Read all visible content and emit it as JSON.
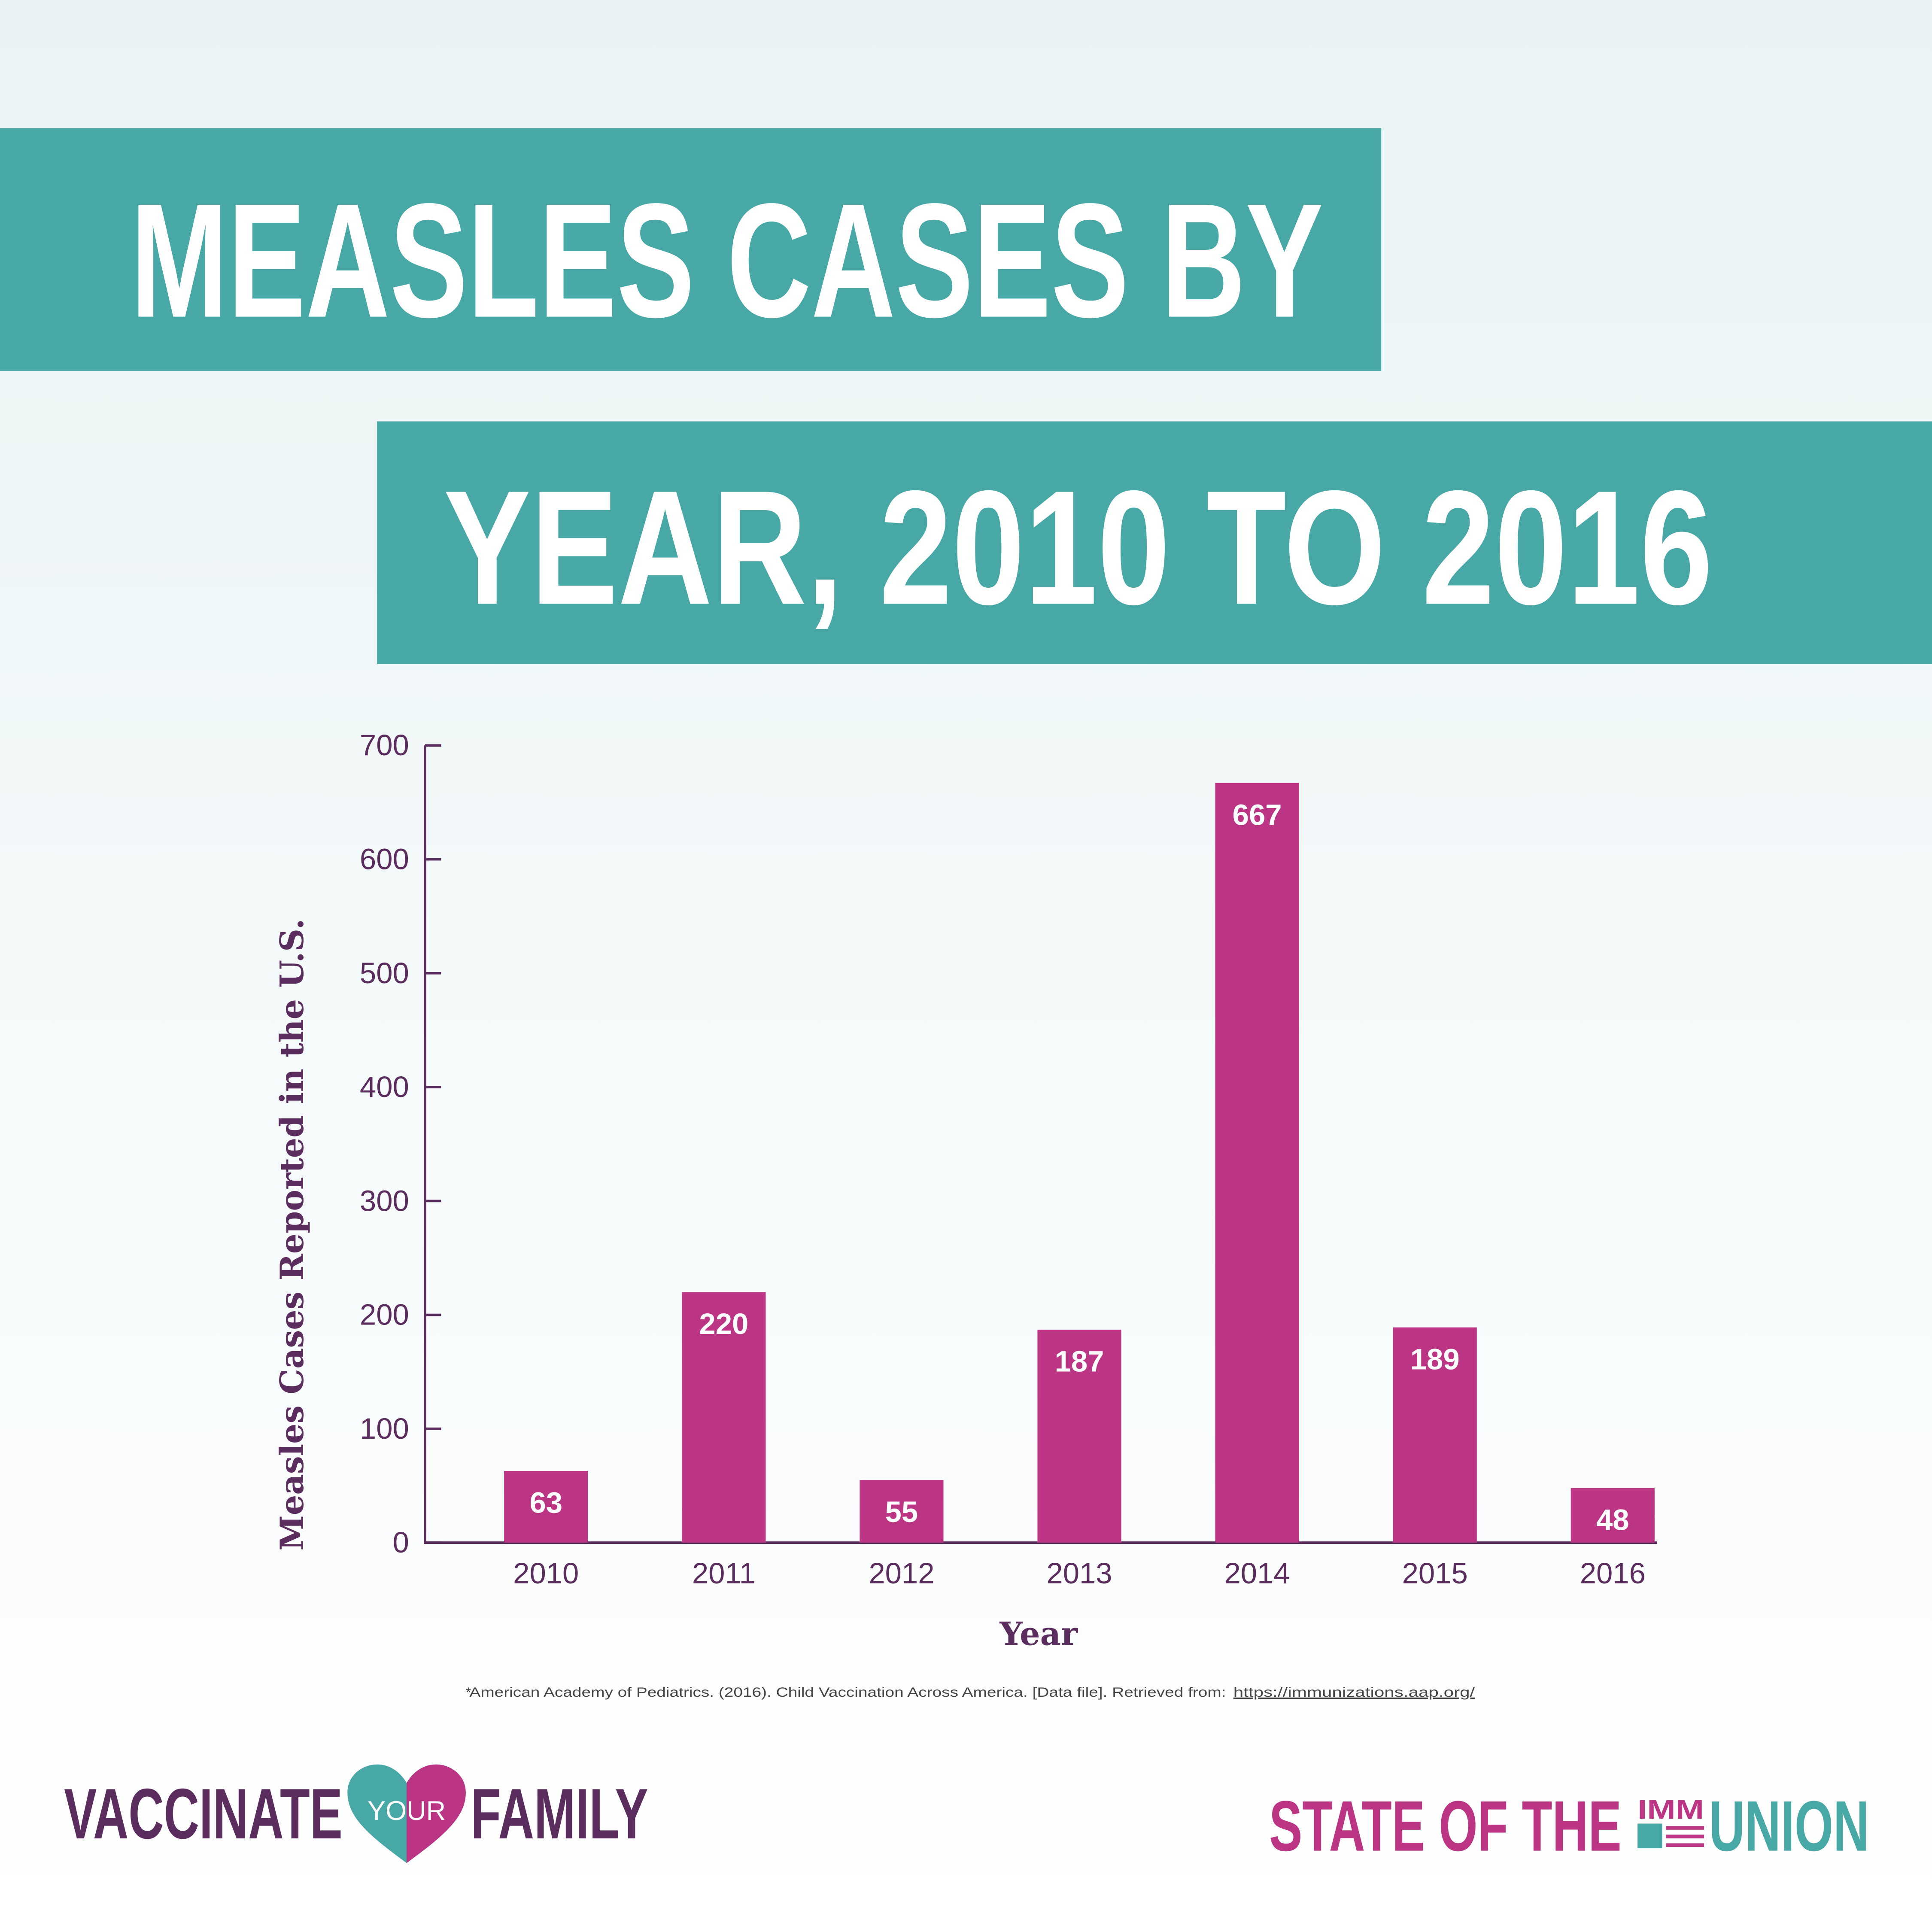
{
  "chart_data": {
    "type": "bar",
    "title": [
      "MEASLES CASES BY",
      "YEAR, 2010 TO 2016"
    ],
    "x_label": "Year",
    "y_label": "Measles Cases Reported in the U.S.",
    "categories": [
      "2010",
      "2011",
      "2012",
      "2013",
      "2014",
      "2015",
      "2016"
    ],
    "values": [
      63,
      220,
      55,
      187,
      667,
      189,
      48
    ],
    "color": "#bc3584",
    "ylim": [
      0,
      700
    ],
    "yticks": [
      0,
      100,
      200,
      300,
      400,
      500,
      600,
      700
    ],
    "grid": false
  },
  "footnote": {
    "marker": "*",
    "text": "American Academy of Pediatrics. (2016). Child Vaccination Across America. [Data file]. Retrieved from:",
    "link": "https://immunizations.aap.org/"
  },
  "footer": {
    "left_logo": [
      "VACCINATE",
      "YOUR",
      "FAMILY"
    ],
    "right_logo": [
      "STATE OF THE",
      "IMM",
      "UNION"
    ]
  }
}
